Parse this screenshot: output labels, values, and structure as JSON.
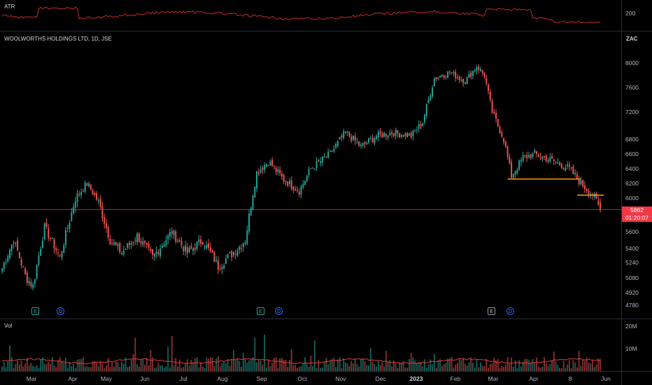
{
  "atr": {
    "label": "ATR",
    "tick": "200"
  },
  "main": {
    "title": "WOOLWORTHS HOLDINGS LTD, 1D, JSE",
    "currency": "ZAC",
    "ticks": [
      "8000",
      "7600",
      "7200",
      "6800",
      "6600",
      "6400",
      "6200",
      "6000",
      "5600",
      "5400",
      "5240",
      "5080",
      "4920",
      "4780"
    ],
    "last_price": "5862",
    "countdown": "01:20:07"
  },
  "volume": {
    "label": "Vol",
    "ticks": [
      "20M",
      "10M"
    ]
  },
  "events": [
    {
      "type": "E",
      "label": "E"
    },
    {
      "type": "D",
      "label": "D"
    },
    {
      "type": "E",
      "label": "E"
    },
    {
      "type": "D",
      "label": "D"
    },
    {
      "type": "E",
      "label": "E"
    },
    {
      "type": "D",
      "label": "D"
    }
  ],
  "x_axis": [
    "Mar",
    "Apr",
    "May",
    "Jun",
    "Jul",
    "Aug",
    "Sep",
    "Oct",
    "Nov",
    "Dec",
    "2023",
    "Feb",
    "Mar",
    "Apr",
    "8",
    "Jun"
  ],
  "colors": {
    "up": "#26a69a",
    "down": "#ef5350",
    "hline": "#ff9800",
    "price_line": "#f23645",
    "atr": "#c62828",
    "vol_ma": "#e53935"
  },
  "chart_data": {
    "type": "candlestick",
    "symbol": "WOOLWORTHS HOLDINGS LTD",
    "interval": "1D",
    "exchange": "JSE",
    "ylim": [
      4700,
      8100
    ],
    "anchors": [
      {
        "d": 0,
        "p": 5180
      },
      {
        "d": 6,
        "p": 5500
      },
      {
        "d": 12,
        "p": 5100
      },
      {
        "d": 16,
        "p": 4990
      },
      {
        "d": 22,
        "p": 5650
      },
      {
        "d": 30,
        "p": 5300
      },
      {
        "d": 38,
        "p": 6000
      },
      {
        "d": 44,
        "p": 6200
      },
      {
        "d": 50,
        "p": 5950
      },
      {
        "d": 56,
        "p": 5500
      },
      {
        "d": 62,
        "p": 5350
      },
      {
        "d": 70,
        "p": 5550
      },
      {
        "d": 78,
        "p": 5300
      },
      {
        "d": 88,
        "p": 5600
      },
      {
        "d": 96,
        "p": 5350
      },
      {
        "d": 104,
        "p": 5500
      },
      {
        "d": 112,
        "p": 5200
      },
      {
        "d": 122,
        "p": 5400
      },
      {
        "d": 126,
        "p": 5500
      },
      {
        "d": 132,
        "p": 6350
      },
      {
        "d": 138,
        "p": 6500
      },
      {
        "d": 146,
        "p": 6250
      },
      {
        "d": 154,
        "p": 6100
      },
      {
        "d": 160,
        "p": 6400
      },
      {
        "d": 170,
        "p": 6600
      },
      {
        "d": 178,
        "p": 6900
      },
      {
        "d": 186,
        "p": 6700
      },
      {
        "d": 194,
        "p": 6850
      },
      {
        "d": 202,
        "p": 6900
      },
      {
        "d": 212,
        "p": 6850
      },
      {
        "d": 218,
        "p": 7050
      },
      {
        "d": 224,
        "p": 7750
      },
      {
        "d": 232,
        "p": 7850
      },
      {
        "d": 240,
        "p": 7700
      },
      {
        "d": 246,
        "p": 7950
      },
      {
        "d": 250,
        "p": 7800
      },
      {
        "d": 254,
        "p": 7200
      },
      {
        "d": 260,
        "p": 6800
      },
      {
        "d": 264,
        "p": 6300
      },
      {
        "d": 270,
        "p": 6550
      },
      {
        "d": 276,
        "p": 6600
      },
      {
        "d": 286,
        "p": 6500
      },
      {
        "d": 294,
        "p": 6400
      },
      {
        "d": 300,
        "p": 6200
      },
      {
        "d": 306,
        "p": 6050
      },
      {
        "d": 310,
        "p": 5870
      }
    ],
    "horizontal_lines": [
      {
        "price": 6260,
        "from_day": 262,
        "to_day": 300
      },
      {
        "price": 6040,
        "from_day": 298,
        "to_day": 312
      }
    ],
    "last_price": 5862
  }
}
